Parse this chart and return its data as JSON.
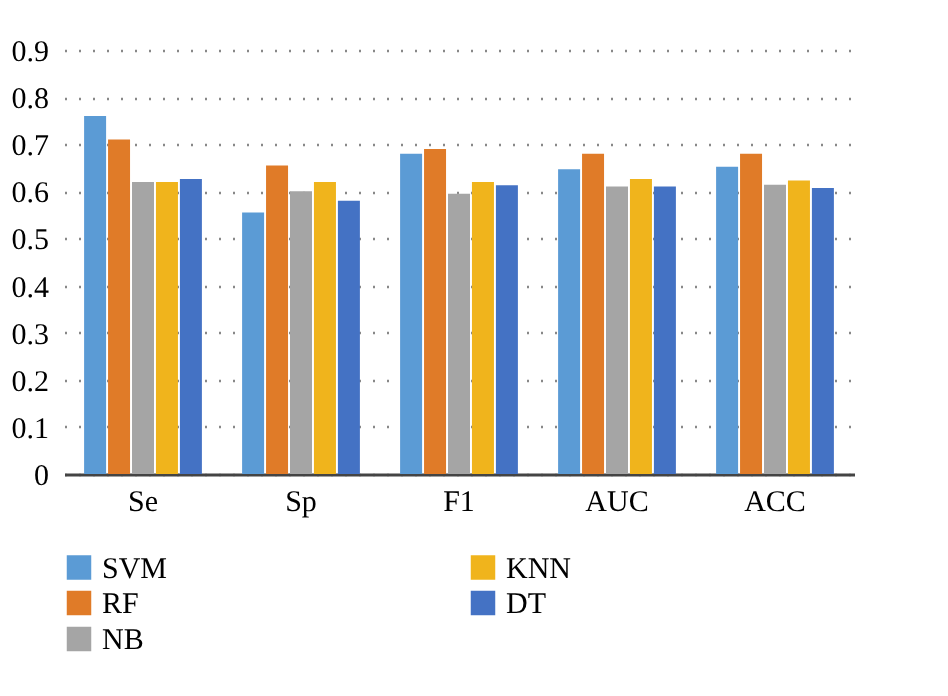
{
  "chart_data": {
    "type": "bar",
    "categories": [
      "Se",
      "Sp",
      "F1",
      "AUC",
      "ACC"
    ],
    "series": [
      {
        "name": "SVM",
        "color": "#5b9bd5",
        "values": [
          0.76,
          0.555,
          0.68,
          0.647,
          0.652
        ]
      },
      {
        "name": "RF",
        "color": "#e07b28",
        "values": [
          0.71,
          0.655,
          0.69,
          0.68,
          0.68
        ]
      },
      {
        "name": "NB",
        "color": "#a5a5a5",
        "values": [
          0.62,
          0.6,
          0.595,
          0.61,
          0.614
        ]
      },
      {
        "name": "KNN",
        "color": "#f0b41c",
        "values": [
          0.62,
          0.62,
          0.62,
          0.626,
          0.623
        ]
      },
      {
        "name": "DT",
        "color": "#4472c4",
        "values": [
          0.626,
          0.58,
          0.613,
          0.61,
          0.607
        ]
      }
    ],
    "ylim": [
      0,
      0.9
    ],
    "yticks": [
      0,
      0.1,
      0.2,
      0.3,
      0.4,
      0.5,
      0.6,
      0.7,
      0.8,
      0.9
    ],
    "grid": "y",
    "legend": "bottom"
  }
}
